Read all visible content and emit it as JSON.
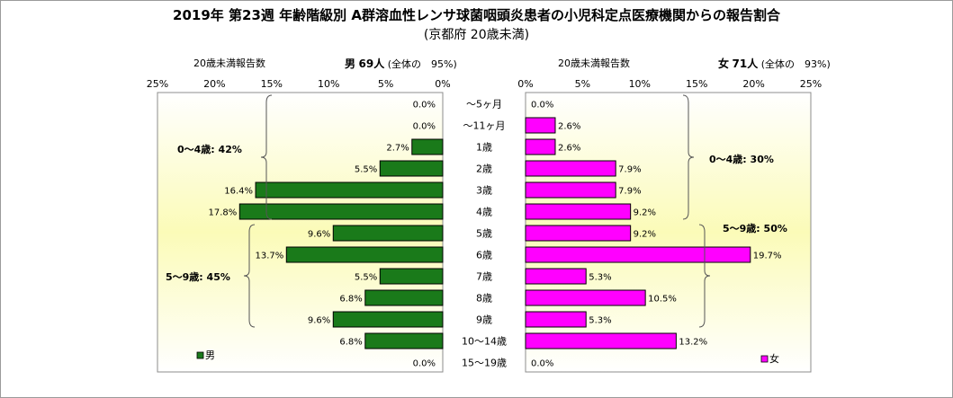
{
  "title": "2019年 第23週 年齢階級別 A群溶血性レンサ球菌咽頭炎患者の小児科定点医療機関からの報告割合",
  "subtitle": "(京都府 20歳未満)",
  "male": {
    "header_label": "20歳未満報告数",
    "sex_label": "男",
    "count_label": "69人",
    "share_label": "(全体の　95%)",
    "legend": "男",
    "color": "#1a7a1a"
  },
  "female": {
    "header_label": "20歳未満報告数",
    "sex_label": "女",
    "count_label": "71人",
    "share_label": "(全体の　93%)",
    "legend": "女",
    "color": "#ff00ff"
  },
  "chart_data": {
    "type": "bar",
    "orientation": "horizontal-butterfly",
    "categories": [
      "〜5ヶ月",
      "〜11ヶ月",
      "1歳",
      "2歳",
      "3歳",
      "4歳",
      "5歳",
      "6歳",
      "7歳",
      "8歳",
      "9歳",
      "10〜14歳",
      "15〜19歳"
    ],
    "series": [
      {
        "name": "男",
        "values": [
          0.0,
          0.0,
          2.7,
          5.5,
          16.4,
          17.8,
          9.6,
          13.7,
          5.5,
          6.8,
          9.6,
          6.8,
          0.0
        ],
        "labels": [
          "0.0%",
          "0.0%",
          "2.7%",
          "5.5%",
          "16.4%",
          "17.8%",
          "9.6%",
          "13.7%",
          "5.5%",
          "6.8%",
          "9.6%",
          "6.8%",
          "0.0%"
        ]
      },
      {
        "name": "女",
        "values": [
          0.0,
          2.6,
          2.6,
          7.9,
          7.9,
          9.2,
          9.2,
          19.7,
          5.3,
          10.5,
          5.3,
          13.2,
          0.0
        ],
        "labels": [
          "0.0%",
          "2.6%",
          "2.6%",
          "7.9%",
          "7.9%",
          "9.2%",
          "9.2%",
          "19.7%",
          "5.3%",
          "10.5%",
          "5.3%",
          "13.2%",
          "0.0%"
        ]
      }
    ],
    "xlim": [
      0,
      25
    ],
    "male_ticks": [
      "25%",
      "20%",
      "15%",
      "10%",
      "5%",
      "0%"
    ],
    "female_ticks": [
      "0%",
      "5%",
      "10%",
      "15%",
      "20%",
      "25%"
    ],
    "annotations": {
      "male_0_4": "0〜4歳: 42%",
      "male_5_9": "5〜9歳: 45%",
      "female_0_4": "0〜4歳: 30%",
      "female_5_9": "5〜9歳: 50%"
    }
  }
}
